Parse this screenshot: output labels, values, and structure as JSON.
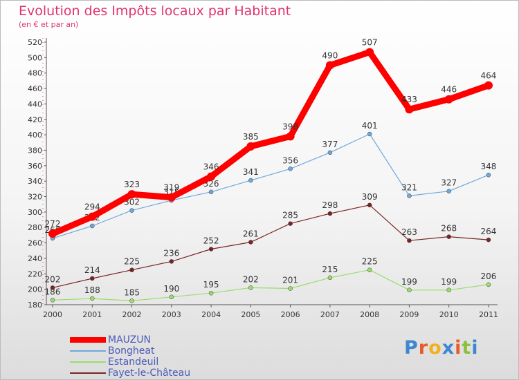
{
  "title": "Evolution des Impôts locaux par Habitant",
  "subtitle": "(en € et par an)",
  "colors": {
    "title": "#e0336a",
    "mauzun": "#ff0000",
    "bongheat": "#6fa8dc",
    "estandeuil": "#9cdc6e",
    "fayet": "#7a2424",
    "legend_text": "#4a5ab8"
  },
  "logo": {
    "text": "Proxiti",
    "letters": [
      "P",
      "r",
      "o",
      "x",
      "i",
      "t",
      "i"
    ],
    "letter_colors": [
      "#3f86d0",
      "#e85a2a",
      "#f2b01e",
      "#3f86d0",
      "#e85a2a",
      "#8cbf3f",
      "#3f86d0"
    ]
  },
  "chart_data": {
    "type": "line",
    "x": [
      "2000",
      "2001",
      "2002",
      "2003",
      "2004",
      "2005",
      "2006",
      "2007",
      "2008",
      "2009",
      "2010",
      "2011"
    ],
    "ylim": [
      180,
      520
    ],
    "yticks": [
      180,
      200,
      220,
      240,
      260,
      280,
      300,
      320,
      340,
      360,
      380,
      400,
      420,
      440,
      460,
      480,
      500,
      520
    ],
    "grid": false,
    "legend_position": "bottom-left",
    "series": [
      {
        "name": "MAUZUN",
        "color": "#ff0000",
        "values": [
          272,
          294,
          323,
          319,
          346,
          385,
          398,
          490,
          507,
          433,
          446,
          464
        ]
      },
      {
        "name": "Bongheat",
        "color": "#6fa8dc",
        "values": [
          266,
          282,
          302,
          315,
          326,
          341,
          356,
          377,
          401,
          321,
          327,
          348
        ]
      },
      {
        "name": "Estandeuil",
        "color": "#9cdc6e",
        "values": [
          186,
          188,
          185,
          190,
          195,
          202,
          201,
          215,
          225,
          199,
          199,
          206
        ]
      },
      {
        "name": "Fayet-le-Château",
        "color": "#7a2424",
        "values": [
          202,
          214,
          225,
          236,
          252,
          261,
          285,
          298,
          309,
          263,
          268,
          264
        ]
      }
    ]
  }
}
